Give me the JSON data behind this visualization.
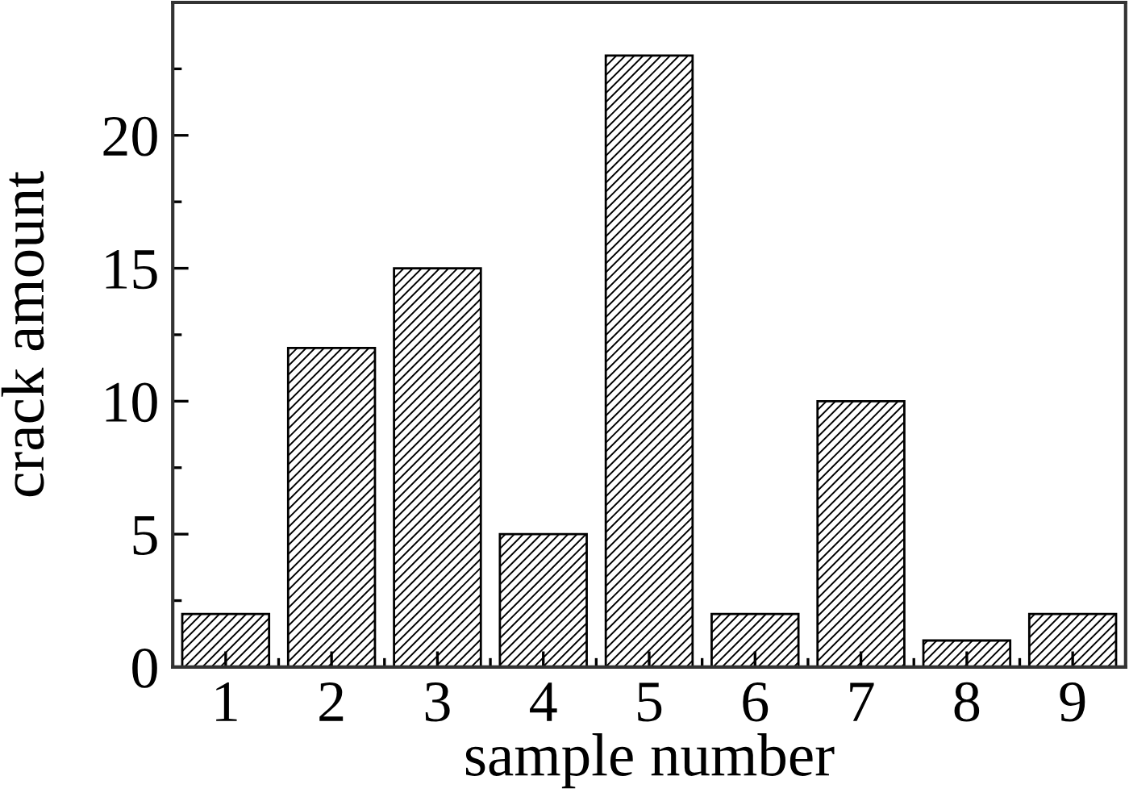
{
  "chart_data": {
    "type": "bar",
    "xlabel": "sample number",
    "ylabel": "crack amount",
    "categories": [
      "1",
      "2",
      "3",
      "4",
      "5",
      "6",
      "7",
      "8",
      "9"
    ],
    "values": [
      2,
      12,
      15,
      5,
      23,
      2,
      10,
      1,
      2
    ],
    "color": "#000000",
    "ylim": [
      0,
      25
    ],
    "yticks": [
      0,
      {
        "value": 2.5,
        "label": null
      },
      5,
      {
        "value": 7.5,
        "label": null
      },
      10,
      {
        "value": 12.5,
        "label": null
      },
      15,
      {
        "value": 17.5,
        "label": null
      },
      20,
      {
        "value": 22.5,
        "label": null
      }
    ]
  }
}
